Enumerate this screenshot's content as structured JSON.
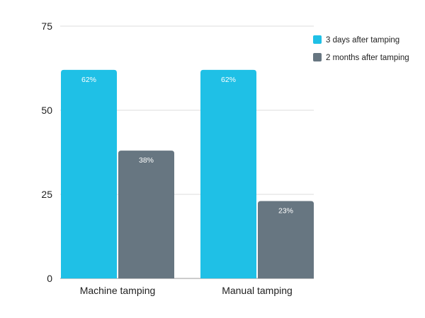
{
  "chart_data": {
    "type": "bar",
    "title": "",
    "xlabel": "",
    "ylabel": "",
    "categories": [
      "Machine tamping",
      "Manual tamping"
    ],
    "series": [
      {
        "name": "3 days after tamping",
        "values": [
          62,
          62
        ],
        "labels": [
          "62%",
          "62%"
        ],
        "color": "#1fc0e6"
      },
      {
        "name": "2 months after tamping",
        "values": [
          38,
          23
        ],
        "labels": [
          "38%",
          "23%"
        ],
        "color": "#677681"
      }
    ],
    "ylim": [
      0,
      75
    ],
    "yticks": [
      0,
      25,
      50,
      75
    ],
    "grid": true,
    "legend": "top-right"
  }
}
